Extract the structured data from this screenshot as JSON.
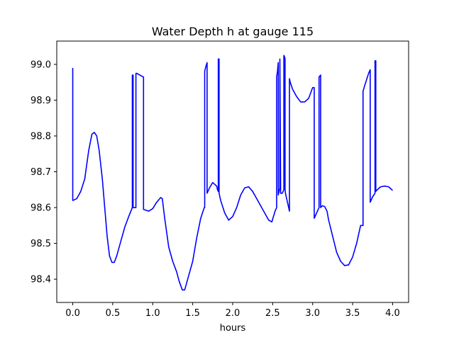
{
  "chart_data": {
    "type": "line",
    "title": "Water Depth h at gauge 115",
    "xlabel": "hours",
    "ylabel": "",
    "xlim": [
      -0.2,
      4.2
    ],
    "ylim": [
      98.335,
      99.065
    ],
    "xticks": [
      0.0,
      0.5,
      1.0,
      1.5,
      2.0,
      2.5,
      3.0,
      3.5,
      4.0
    ],
    "xtick_labels": [
      "0.0",
      "0.5",
      "1.0",
      "1.5",
      "2.0",
      "2.5",
      "3.0",
      "3.5",
      "4.0"
    ],
    "yticks": [
      98.4,
      98.5,
      98.6,
      98.7,
      98.8,
      98.9,
      99.0
    ],
    "ytick_labels": [
      "98.4",
      "98.5",
      "98.6",
      "98.7",
      "98.8",
      "98.9",
      "99.0"
    ],
    "grid": false,
    "legend": "none",
    "color": "#0000ff",
    "series": [
      {
        "x": [
          0.0,
          0.0,
          0.003,
          0.05,
          0.1,
          0.15,
          0.2,
          0.24,
          0.27,
          0.3,
          0.33,
          0.37,
          0.4,
          0.43,
          0.46,
          0.49,
          0.52,
          0.55,
          0.6,
          0.65,
          0.7,
          0.745,
          0.745,
          0.755,
          0.755,
          0.79,
          0.79,
          0.8,
          0.88,
          0.885,
          0.885,
          0.95,
          1.0,
          1.05,
          1.1,
          1.12,
          1.15,
          1.2,
          1.25,
          1.3,
          1.33,
          1.37,
          1.4,
          1.45,
          1.5,
          1.55,
          1.6,
          1.645,
          1.65,
          1.65,
          1.66,
          1.68,
          1.68,
          1.71,
          1.75,
          1.8,
          1.81,
          1.82,
          1.82,
          1.83,
          1.83,
          1.85,
          1.9,
          1.95,
          2.0,
          2.05,
          2.1,
          2.15,
          2.2,
          2.25,
          2.3,
          2.35,
          2.4,
          2.45,
          2.49,
          2.53,
          2.55,
          2.55,
          2.56,
          2.57,
          2.57,
          2.58,
          2.59,
          2.59,
          2.6,
          2.62,
          2.64,
          2.64,
          2.65,
          2.655,
          2.655,
          2.66,
          2.68,
          2.7,
          2.71,
          2.71,
          2.72,
          2.75,
          2.8,
          2.85,
          2.9,
          2.95,
          3.0,
          3.02,
          3.02,
          3.03,
          3.05,
          3.08,
          3.08,
          3.1,
          3.1,
          3.12,
          3.15,
          3.18,
          3.2,
          3.25,
          3.3,
          3.35,
          3.4,
          3.45,
          3.5,
          3.55,
          3.6,
          3.63,
          3.63,
          3.65,
          3.7,
          3.72,
          3.72,
          3.75,
          3.78,
          3.78,
          3.79,
          3.79,
          3.8,
          3.85,
          3.9,
          3.95,
          4.0
        ],
        "y": [
          98.99,
          98.62,
          98.62,
          98.625,
          98.645,
          98.68,
          98.76,
          98.805,
          98.81,
          98.8,
          98.76,
          98.68,
          98.6,
          98.52,
          98.465,
          98.447,
          98.447,
          98.465,
          98.505,
          98.545,
          98.575,
          98.6,
          98.97,
          98.97,
          98.6,
          98.6,
          98.975,
          98.975,
          98.965,
          98.965,
          98.595,
          98.59,
          98.597,
          98.615,
          98.628,
          98.625,
          98.57,
          98.49,
          98.45,
          98.42,
          98.395,
          98.37,
          98.37,
          98.41,
          98.45,
          98.515,
          98.57,
          98.6,
          98.6,
          98.98,
          98.99,
          99.005,
          98.64,
          98.655,
          98.67,
          98.66,
          98.65,
          98.645,
          99.015,
          99.015,
          98.64,
          98.62,
          98.585,
          98.565,
          98.575,
          98.6,
          98.635,
          98.655,
          98.658,
          98.645,
          98.625,
          98.605,
          98.585,
          98.565,
          98.56,
          98.59,
          98.6,
          98.965,
          98.98,
          99.005,
          98.635,
          98.645,
          98.655,
          99.015,
          98.64,
          98.64,
          98.65,
          99.025,
          99.02,
          99.015,
          98.65,
          98.64,
          98.62,
          98.6,
          98.59,
          98.96,
          98.95,
          98.93,
          98.91,
          98.895,
          98.895,
          98.905,
          98.935,
          98.935,
          98.57,
          98.575,
          98.585,
          98.6,
          98.965,
          98.97,
          98.6,
          98.605,
          98.603,
          98.59,
          98.565,
          98.52,
          98.475,
          98.45,
          98.438,
          98.44,
          98.462,
          98.5,
          98.55,
          98.55,
          98.925,
          98.94,
          98.975,
          98.985,
          98.615,
          98.63,
          98.64,
          99.01,
          99.01,
          98.645,
          98.648,
          98.658,
          98.66,
          98.658,
          98.648
        ]
      }
    ]
  }
}
